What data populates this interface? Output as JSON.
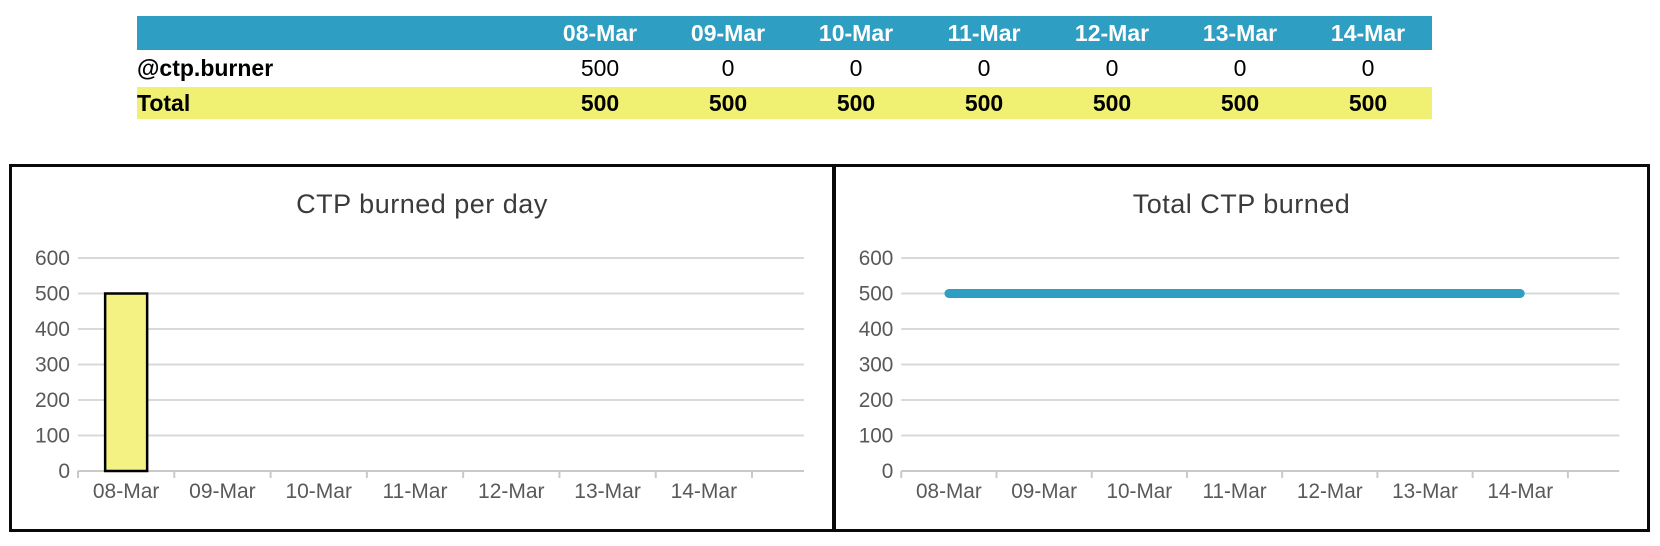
{
  "table": {
    "corner_label": "",
    "columns": [
      "08-Mar",
      "09-Mar",
      "10-Mar",
      "11-Mar",
      "12-Mar",
      "13-Mar",
      "14-Mar"
    ],
    "rows": [
      {
        "label": "@ctp.burner",
        "type": "data",
        "values": [
          "500",
          "0",
          "0",
          "0",
          "0",
          "0",
          "0"
        ]
      },
      {
        "label": "Total",
        "type": "total",
        "values": [
          "500",
          "500",
          "500",
          "500",
          "500",
          "500",
          "500"
        ]
      }
    ],
    "header_bg": "#2f9ec3",
    "header_text_color": "#ffffff",
    "total_bg": "#f0f073"
  },
  "chart_data": [
    {
      "type": "bar",
      "title": "CTP burned per day",
      "categories": [
        "08-Mar",
        "09-Mar",
        "10-Mar",
        "11-Mar",
        "12-Mar",
        "13-Mar",
        "14-Mar"
      ],
      "values": [
        500,
        0,
        0,
        0,
        0,
        0,
        0
      ],
      "ylim": [
        0,
        600
      ],
      "yticks": [
        0,
        100,
        200,
        300,
        400,
        500,
        600
      ],
      "grid": true,
      "legend": "none",
      "bar_color": "#f3f283",
      "bar_border_color": "#000000"
    },
    {
      "type": "line",
      "title": "Total CTP burned",
      "categories": [
        "08-Mar",
        "09-Mar",
        "10-Mar",
        "11-Mar",
        "12-Mar",
        "13-Mar",
        "14-Mar"
      ],
      "values": [
        500,
        500,
        500,
        500,
        500,
        500,
        500
      ],
      "ylim": [
        0,
        600
      ],
      "yticks": [
        0,
        100,
        200,
        300,
        400,
        500,
        600
      ],
      "grid": true,
      "legend": "none",
      "line_color": "#2f9ec3"
    }
  ],
  "chart_style": {
    "gridline_color": "#d9d9d9",
    "axis_line_color": "#c9c9c9",
    "axis_text_color": "#595959",
    "title_color": "#3b3b3b"
  }
}
